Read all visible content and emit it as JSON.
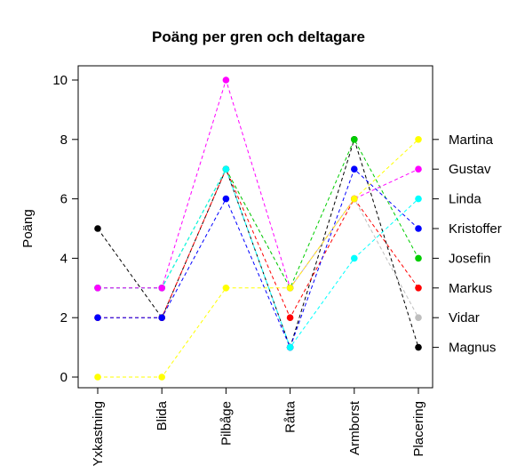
{
  "chart_data": {
    "type": "line",
    "title": "Poäng per gren och deltagare",
    "ylabel": "Poäng",
    "xlabel": "",
    "ylim": [
      0,
      10
    ],
    "yticks": [
      0,
      2,
      4,
      6,
      8,
      10
    ],
    "categories": [
      "Yxkastning",
      "Blida",
      "Pilbåge",
      "Råtta",
      "Armborst",
      "Placering"
    ],
    "line_style": "dashed",
    "grid": false,
    "series": [
      {
        "name": "Magnus",
        "color": "#000000",
        "values": [
          5,
          2,
          7,
          1,
          8,
          1
        ]
      },
      {
        "name": "Vidar",
        "color": "#bebebe",
        "values": [
          3,
          3,
          7,
          3,
          6,
          2
        ]
      },
      {
        "name": "Markus",
        "color": "#ff0000",
        "values": [
          2,
          2,
          7,
          2,
          6,
          3
        ]
      },
      {
        "name": "Josefin",
        "color": "#00cd00",
        "values": [
          3,
          3,
          7,
          3,
          8,
          4
        ]
      },
      {
        "name": "Kristoffer",
        "color": "#0000ff",
        "values": [
          2,
          2,
          6,
          1,
          7,
          5
        ]
      },
      {
        "name": "Linda",
        "color": "#00ffff",
        "values": [
          3,
          3,
          7,
          1,
          4,
          6
        ]
      },
      {
        "name": "Gustav",
        "color": "#ff00ff",
        "values": [
          3,
          3,
          10,
          3,
          6,
          7
        ]
      },
      {
        "name": "Martina",
        "color": "#ffff00",
        "values": [
          0,
          0,
          3,
          3,
          6,
          8
        ]
      }
    ]
  }
}
